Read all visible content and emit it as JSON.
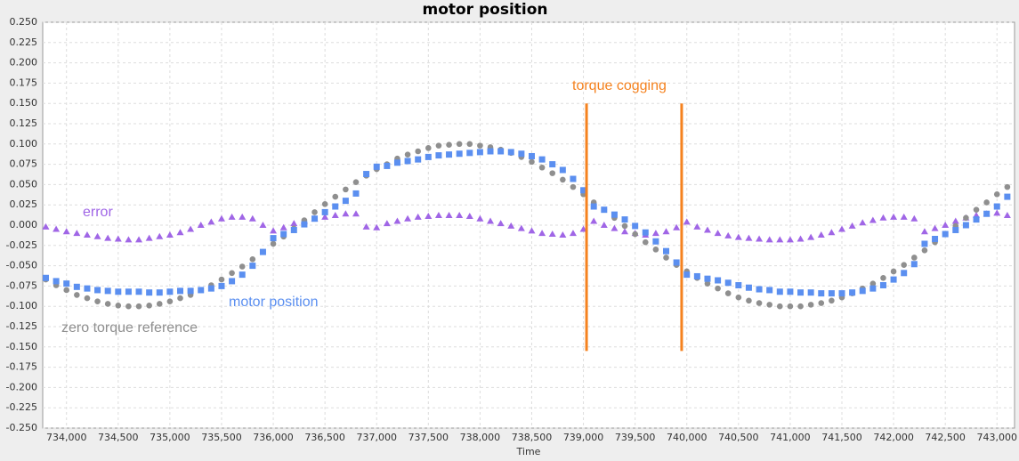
{
  "chart_data": {
    "type": "scatter",
    "title": "motor position",
    "x_label": "Time",
    "xlim": [
      733770,
      743170
    ],
    "ylim": [
      -0.25,
      0.25
    ],
    "grid": true,
    "xticks": [
      {
        "value": 734000,
        "label": "734,000"
      },
      {
        "value": 734500,
        "label": "734,500"
      },
      {
        "value": 735000,
        "label": "735,000"
      },
      {
        "value": 735500,
        "label": "735,500"
      },
      {
        "value": 736000,
        "label": "736,000"
      },
      {
        "value": 736500,
        "label": "736,500"
      },
      {
        "value": 737000,
        "label": "737,000"
      },
      {
        "value": 737500,
        "label": "737,500"
      },
      {
        "value": 738000,
        "label": "738,000"
      },
      {
        "value": 738500,
        "label": "738,500"
      },
      {
        "value": 739000,
        "label": "739,000"
      },
      {
        "value": 739500,
        "label": "739,500"
      },
      {
        "value": 740000,
        "label": "740,000"
      },
      {
        "value": 740500,
        "label": "740,500"
      },
      {
        "value": 741000,
        "label": "741,000"
      },
      {
        "value": 741500,
        "label": "741,500"
      },
      {
        "value": 742000,
        "label": "742,000"
      },
      {
        "value": 742500,
        "label": "742,500"
      },
      {
        "value": 743000,
        "label": "743,000"
      }
    ],
    "yticks": [
      {
        "value": 0.25,
        "label": "0.250"
      },
      {
        "value": 0.225,
        "label": "0.225"
      },
      {
        "value": 0.2,
        "label": "0.200"
      },
      {
        "value": 0.175,
        "label": "0.175"
      },
      {
        "value": 0.15,
        "label": "0.150"
      },
      {
        "value": 0.125,
        "label": "0.125"
      },
      {
        "value": 0.1,
        "label": "0.100"
      },
      {
        "value": 0.075,
        "label": "0.075"
      },
      {
        "value": 0.05,
        "label": "0.050"
      },
      {
        "value": 0.025,
        "label": "0.025"
      },
      {
        "value": 0,
        "label": "0.000"
      },
      {
        "value": -0.025,
        "label": "-0.025"
      },
      {
        "value": -0.05,
        "label": "-0.050"
      },
      {
        "value": -0.075,
        "label": "-0.075"
      },
      {
        "value": -0.1,
        "label": "-0.100"
      },
      {
        "value": -0.125,
        "label": "-0.125"
      },
      {
        "value": -0.15,
        "label": "-0.150"
      },
      {
        "value": -0.175,
        "label": "-0.175"
      },
      {
        "value": -0.2,
        "label": "-0.200"
      },
      {
        "value": -0.225,
        "label": "-0.225"
      },
      {
        "value": -0.25,
        "label": "-0.250"
      }
    ],
    "x": [
      733800,
      733900,
      734000,
      734100,
      734200,
      734300,
      734400,
      734500,
      734600,
      734700,
      734800,
      734900,
      735000,
      735100,
      735200,
      735300,
      735400,
      735500,
      735600,
      735700,
      735800,
      735900,
      736000,
      736100,
      736200,
      736300,
      736400,
      736500,
      736600,
      736700,
      736800,
      736900,
      737000,
      737100,
      737200,
      737300,
      737400,
      737500,
      737600,
      737700,
      737800,
      737900,
      738000,
      738100,
      738200,
      738300,
      738400,
      738500,
      738600,
      738700,
      738800,
      738900,
      739000,
      739100,
      739200,
      739300,
      739400,
      739500,
      739600,
      739700,
      739800,
      739900,
      740000,
      740100,
      740200,
      740300,
      740400,
      740500,
      740600,
      740700,
      740800,
      740900,
      741000,
      741100,
      741200,
      741300,
      741400,
      741500,
      741600,
      741700,
      741800,
      741900,
      742000,
      742100,
      742200,
      742300,
      742400,
      742500,
      742600,
      742700,
      742800,
      742900,
      743000,
      743100
    ],
    "series": [
      {
        "name": "error",
        "color": "#a066e6",
        "marker": "triangle",
        "values": [
          -0.002,
          -0.005,
          -0.008,
          -0.01,
          -0.012,
          -0.014,
          -0.016,
          -0.017,
          -0.018,
          -0.018,
          -0.016,
          -0.014,
          -0.012,
          -0.009,
          -0.005,
          0,
          0.004,
          0.008,
          0.01,
          0.01,
          0.008,
          0,
          -0.007,
          -0.003,
          0.002,
          0.005,
          0.008,
          0.01,
          0.012,
          0.014,
          0.014,
          -0.002,
          -0.003,
          0.002,
          0.005,
          0.008,
          0.01,
          0.011,
          0.012,
          0.012,
          0.012,
          0.011,
          0.008,
          0.005,
          0.002,
          -0.001,
          -0.004,
          -0.007,
          -0.01,
          -0.011,
          -0.012,
          -0.01,
          -0.005,
          0.005,
          0,
          -0.004,
          -0.008,
          -0.01,
          -0.012,
          -0.01,
          -0.008,
          -0.003,
          0.004,
          -0.002,
          -0.006,
          -0.01,
          -0.013,
          -0.015,
          -0.016,
          -0.017,
          -0.018,
          -0.018,
          -0.018,
          -0.017,
          -0.015,
          -0.012,
          -0.009,
          -0.005,
          -0.001,
          0.003,
          0.006,
          0.009,
          0.01,
          0.01,
          0.008,
          -0.008,
          -0.004,
          0,
          0.005,
          0.009,
          0.012,
          0.014,
          0.015,
          0.012
        ]
      },
      {
        "name": "zero torque reference",
        "color": "#8f8f8f",
        "marker": "circle",
        "values": [
          -0.067,
          -0.074,
          -0.08,
          -0.086,
          -0.09,
          -0.094,
          -0.097,
          -0.099,
          -0.1,
          -0.1,
          -0.099,
          -0.097,
          -0.094,
          -0.09,
          -0.086,
          -0.08,
          -0.074,
          -0.067,
          -0.059,
          -0.051,
          -0.042,
          -0.033,
          -0.023,
          -0.014,
          -0.004,
          0.006,
          0.016,
          0.026,
          0.035,
          0.044,
          0.053,
          0.061,
          0.069,
          0.075,
          0.082,
          0.087,
          0.091,
          0.095,
          0.098,
          0.099,
          0.1,
          0.1,
          0.098,
          0.096,
          0.093,
          0.089,
          0.084,
          0.078,
          0.071,
          0.064,
          0.056,
          0.047,
          0.038,
          0.028,
          0.019,
          0.009,
          -0.001,
          -0.011,
          -0.021,
          -0.03,
          -0.04,
          -0.049,
          -0.057,
          -0.065,
          -0.072,
          -0.078,
          -0.084,
          -0.089,
          -0.093,
          -0.096,
          -0.098,
          -0.1,
          -0.1,
          -0.1,
          -0.098,
          -0.096,
          -0.093,
          -0.089,
          -0.084,
          -0.078,
          -0.072,
          -0.065,
          -0.057,
          -0.049,
          -0.04,
          -0.031,
          -0.021,
          -0.011,
          -0.001,
          0.009,
          0.019,
          0.028,
          0.038,
          0.047
        ]
      },
      {
        "name": "motor position",
        "color": "#5b8ff0",
        "marker": "square",
        "values": [
          -0.065,
          -0.069,
          -0.072,
          -0.076,
          -0.078,
          -0.08,
          -0.081,
          -0.082,
          -0.082,
          -0.082,
          -0.083,
          -0.083,
          -0.082,
          -0.081,
          -0.081,
          -0.08,
          -0.078,
          -0.075,
          -0.069,
          -0.061,
          -0.05,
          -0.033,
          -0.016,
          -0.011,
          -0.006,
          0.001,
          0.008,
          0.016,
          0.023,
          0.03,
          0.039,
          0.063,
          0.072,
          0.073,
          0.077,
          0.079,
          0.081,
          0.084,
          0.086,
          0.087,
          0.088,
          0.089,
          0.09,
          0.091,
          0.091,
          0.09,
          0.088,
          0.085,
          0.081,
          0.075,
          0.068,
          0.057,
          0.043,
          0.023,
          0.019,
          0.013,
          0.007,
          -0.001,
          -0.009,
          -0.02,
          -0.032,
          -0.046,
          -0.061,
          -0.063,
          -0.066,
          -0.068,
          -0.071,
          -0.074,
          -0.077,
          -0.079,
          -0.08,
          -0.082,
          -0.082,
          -0.083,
          -0.083,
          -0.084,
          -0.084,
          -0.084,
          -0.083,
          -0.081,
          -0.078,
          -0.074,
          -0.067,
          -0.059,
          -0.048,
          -0.023,
          -0.017,
          -0.011,
          -0.006,
          0,
          0.007,
          0.014,
          0.023,
          0.035
        ]
      }
    ],
    "annotation": "torque cogging",
    "vlines": [
      739030,
      739950
    ],
    "vline_range": [
      -0.155,
      0.15
    ],
    "vline_color": "#f5821f"
  }
}
